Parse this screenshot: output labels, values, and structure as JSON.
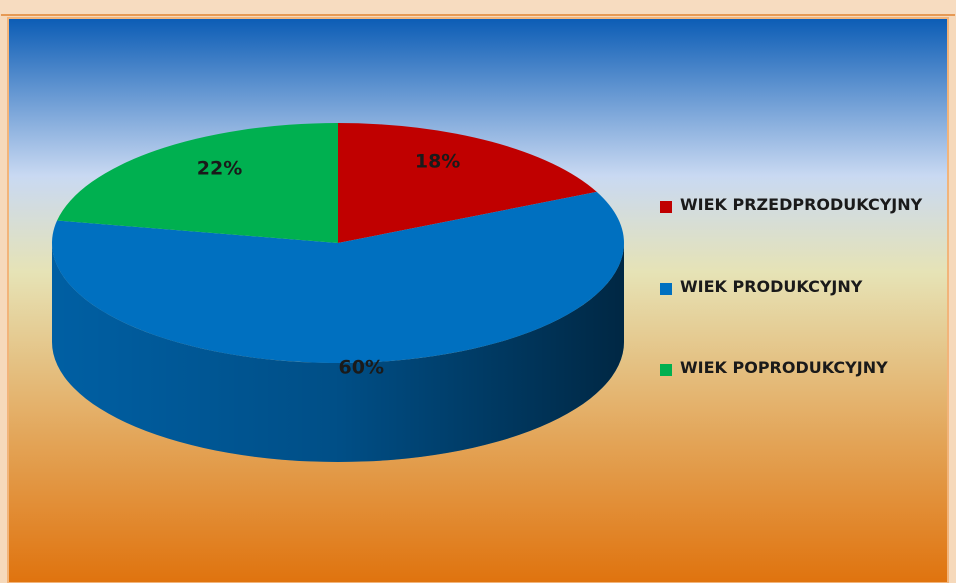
{
  "chart_data": {
    "type": "pie",
    "categories": [
      "WIEK PRZEDPRODUKCYJNY",
      "WIEK PRODUKCYJNY",
      "WIEK POPRODUKCYJNY"
    ],
    "values": [
      18,
      60,
      22
    ],
    "value_labels": [
      "18%",
      "60%",
      "22%"
    ],
    "colors": [
      "#c00000",
      "#0070c0",
      "#00b050"
    ],
    "legend": "right"
  }
}
